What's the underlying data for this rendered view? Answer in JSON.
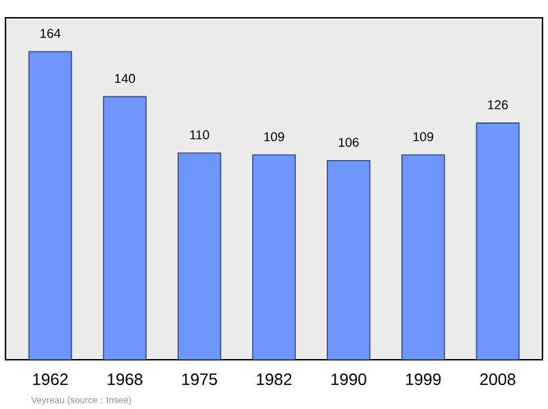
{
  "chart_data": {
    "type": "bar",
    "categories": [
      "1962",
      "1968",
      "1975",
      "1982",
      "1990",
      "1999",
      "2008"
    ],
    "values": [
      164,
      140,
      110,
      109,
      106,
      109,
      126
    ],
    "color": "#6f96fb",
    "ylim": [
      0,
      182
    ],
    "data_labels": true,
    "tick_labels": "x",
    "annotations": [
      "Veyreau    (source : Insee)"
    ]
  }
}
